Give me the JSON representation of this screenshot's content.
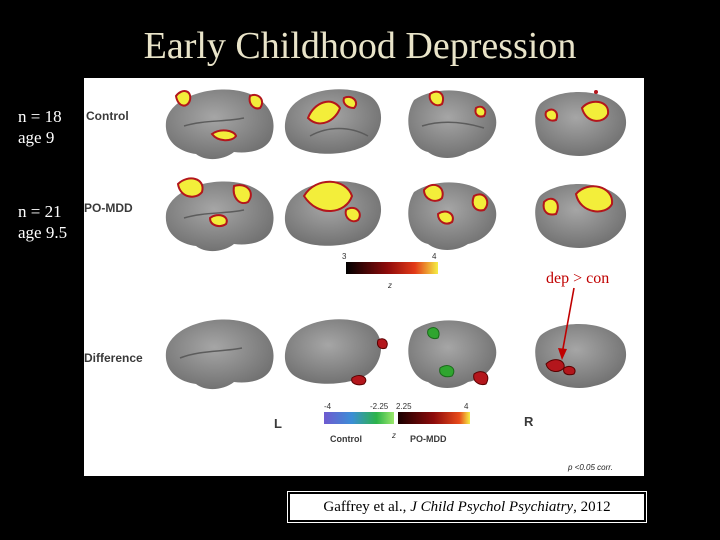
{
  "slide": {
    "title": "Early Childhood Depression",
    "group1": {
      "n": "n = 18",
      "age": "age 9"
    },
    "group2": {
      "n": "n = 21",
      "age": "age 9.5"
    }
  },
  "figure": {
    "row_labels": [
      "Control",
      "PO-MDD",
      "Difference"
    ],
    "scale1": {
      "min": "3",
      "max": "4",
      "axis": "z"
    },
    "scale2": {
      "neg_min": "-4",
      "neg_thresh": "-2.25",
      "pos_thresh": "2.25",
      "pos_max": "4",
      "axis": "z",
      "neg_label": "Control",
      "pos_label": "PO-MDD"
    },
    "hemi_left": "L",
    "hemi_right": "R",
    "p_note": "p <0.05 corr."
  },
  "annotation": {
    "text": "dep > con"
  },
  "citation": {
    "authors": "Gaffrey et al., ",
    "journal": "J Child Psychol Psychiatry",
    "year": ", 2012"
  },
  "colors": {
    "brain": "#8c8c8c",
    "hot_yellow": "#f3ee3a",
    "hot_red": "#b3161c",
    "cool_green": "#2fa52f",
    "arrow": "#c00000"
  }
}
